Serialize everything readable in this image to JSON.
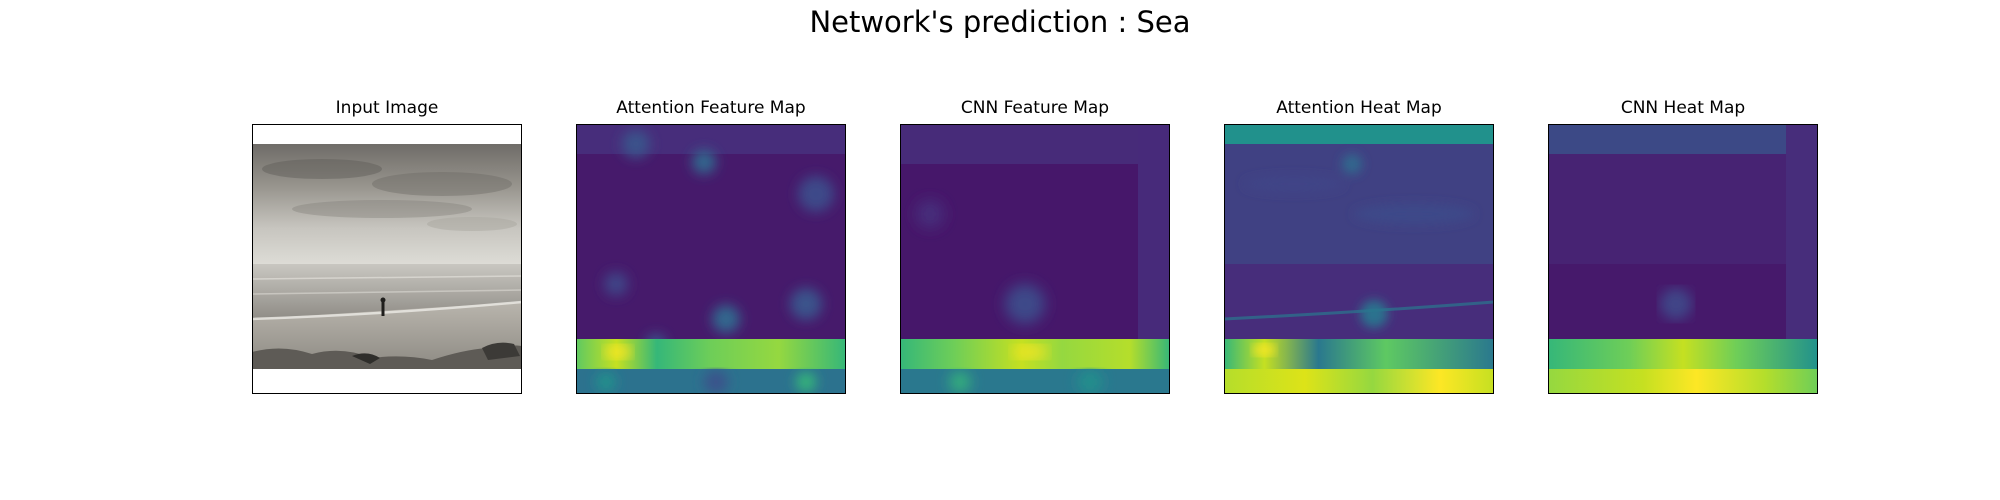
{
  "figure": {
    "suptitle": "Network's prediction : Sea",
    "panels": [
      {
        "title": "Input Image"
      },
      {
        "title": "Attention Feature Map"
      },
      {
        "title": "CNN Feature Map"
      },
      {
        "title": "Attention Heat Map"
      },
      {
        "title": "CNN Heat Map"
      }
    ]
  },
  "colors": {
    "viridis_dark": "#440154",
    "viridis_purple": "#472d7b",
    "viridis_blue": "#3b528b",
    "viridis_teal": "#21918c",
    "viridis_green": "#5ec962",
    "viridis_yellow": "#fde725",
    "photo_sky": "#8e8b84",
    "photo_sand": "#a29e95"
  }
}
